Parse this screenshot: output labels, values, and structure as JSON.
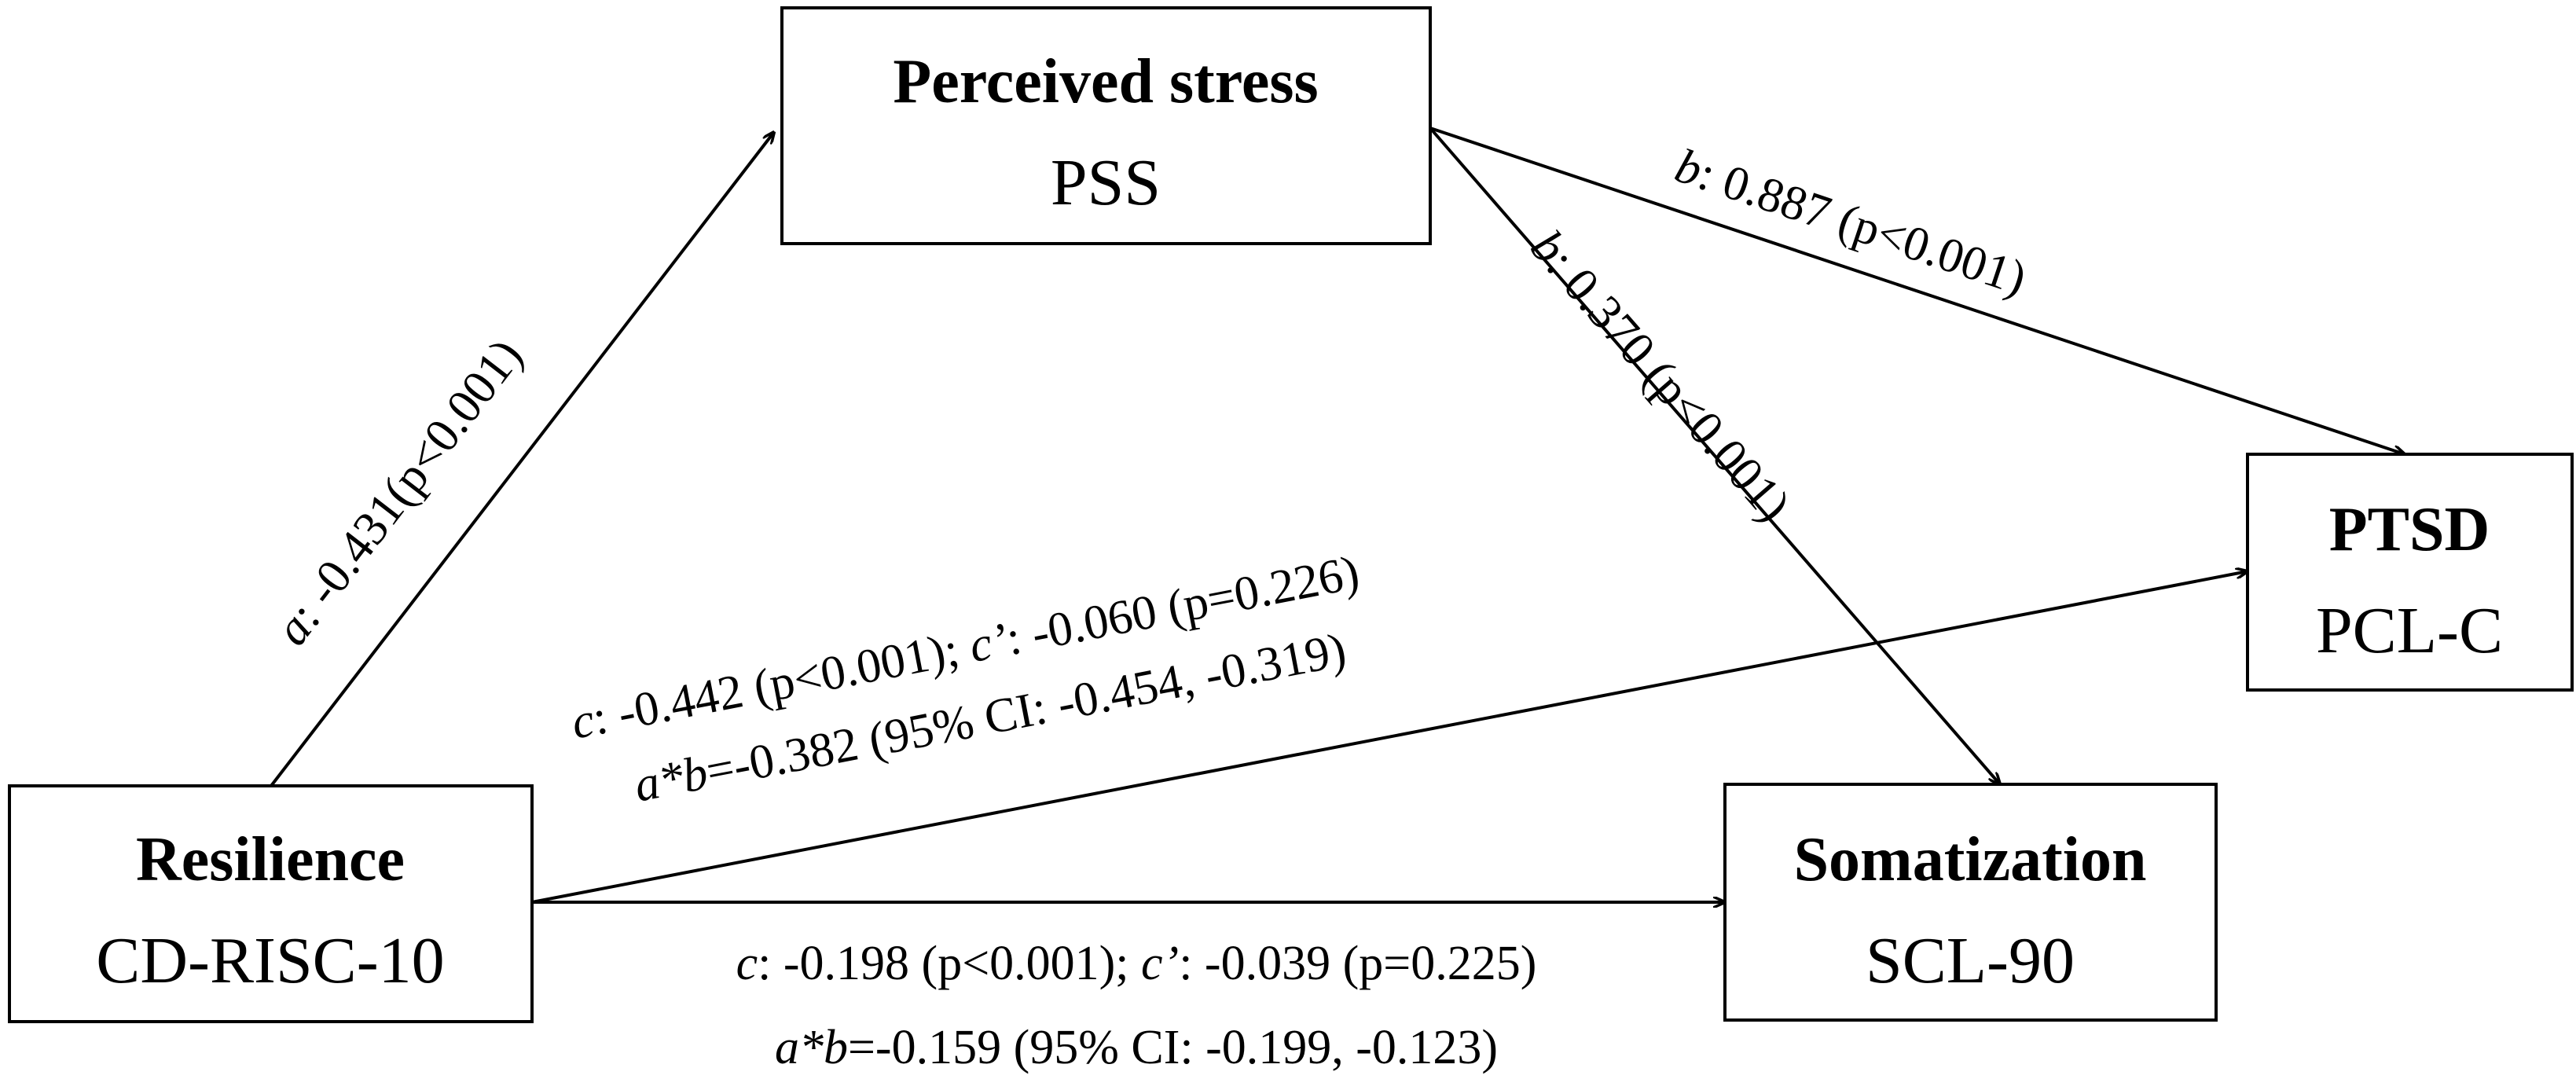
{
  "nodes": {
    "stress": {
      "title": "Perceived stress",
      "sub": "PSS"
    },
    "ptsd": {
      "title": "PTSD",
      "sub": "PCL-C"
    },
    "resilience": {
      "title": "Resilience",
      "sub": "CD-RISC-10"
    },
    "somatization": {
      "title": "Somatization",
      "sub": "SCL-90"
    }
  },
  "edges": {
    "a": {
      "sym": "a",
      "text": ": -0.431(p<0.001)"
    },
    "b_ptsd": {
      "sym": "b",
      "text": ": 0.887 (p<0.001)"
    },
    "b_som": {
      "sym": "b",
      "text": ": 0.370 (p<0.001)"
    },
    "ptsd_line1": {
      "c_sym": "c",
      "c_text": ": -0.442 (p<0.001); ",
      "cp_sym": "c’",
      "cp_text": ": -0.060 (p=0.226)"
    },
    "ptsd_line2": {
      "ab_sym": "a*b",
      "ab_text": "=-0.382 (95% CI: -0.454, -0.319)"
    },
    "som_line1": {
      "c_sym": "c",
      "c_text": ": -0.198 (p<0.001); ",
      "cp_sym": "c’",
      "cp_text": ": -0.039 (p=0.225)"
    },
    "som_line2": {
      "ab_sym": "a*b",
      "ab_text": "=-0.159 (95% CI: -0.199, -0.123)"
    }
  }
}
